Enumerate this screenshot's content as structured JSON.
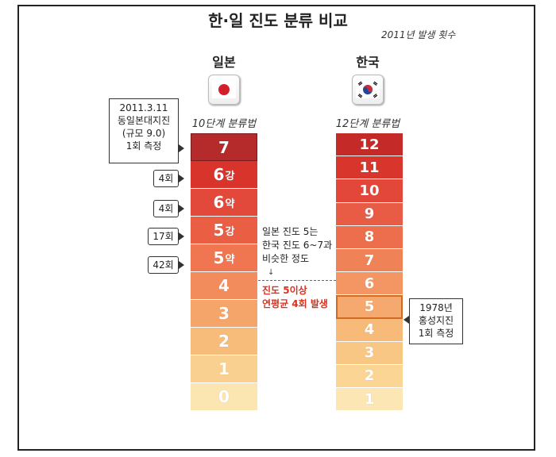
{
  "title": "한·일 진도 분류 비교",
  "note": "2011년 발생 횟수",
  "japan": {
    "name": "일본",
    "method": "10단계 분류법",
    "levels": [
      {
        "num": "7",
        "suffix": "",
        "color": "#b52a2a"
      },
      {
        "num": "6",
        "suffix": "강",
        "color": "#d9342b"
      },
      {
        "num": "6",
        "suffix": "약",
        "color": "#e3493a"
      },
      {
        "num": "5",
        "suffix": "강",
        "color": "#ea5f44"
      },
      {
        "num": "5",
        "suffix": "약",
        "color": "#ef7650"
      },
      {
        "num": "4",
        "suffix": "",
        "color": "#f28c5d"
      },
      {
        "num": "3",
        "suffix": "",
        "color": "#f5a46a"
      },
      {
        "num": "2",
        "suffix": "",
        "color": "#f7bb7a"
      },
      {
        "num": "1",
        "suffix": "",
        "color": "#f9d08f"
      },
      {
        "num": "0",
        "suffix": "",
        "color": "#fbe5b0"
      }
    ],
    "counts": [
      "4회",
      "4회",
      "17회",
      "42회"
    ],
    "callout": [
      "2011.3.11",
      "동일본대지진",
      "(규모 9.0)",
      "1회 측정"
    ]
  },
  "korea": {
    "name": "한국",
    "method": "12단계 분류법",
    "levels": [
      {
        "num": "12",
        "color": "#c42a28"
      },
      {
        "num": "11",
        "color": "#d8352c"
      },
      {
        "num": "10",
        "color": "#e2473a"
      },
      {
        "num": "9",
        "color": "#e85b44"
      },
      {
        "num": "8",
        "color": "#ed6e4d"
      },
      {
        "num": "7",
        "color": "#f08258"
      },
      {
        "num": "6",
        "color": "#f39663"
      },
      {
        "num": "5",
        "color": "#f5a96e"
      },
      {
        "num": "4",
        "color": "#f7ba78"
      },
      {
        "num": "3",
        "color": "#f8c784"
      },
      {
        "num": "2",
        "color": "#fad594"
      },
      {
        "num": "1",
        "color": "#fce6b3"
      }
    ],
    "callout": [
      "1978년",
      "홍성지진",
      "1회 측정"
    ]
  },
  "comparison": [
    "일본 진도 5는",
    "한국 진도 6~7과",
    "비슷한 정도"
  ],
  "annual": [
    "진도 5이상",
    "연평균 4회 발생"
  ]
}
